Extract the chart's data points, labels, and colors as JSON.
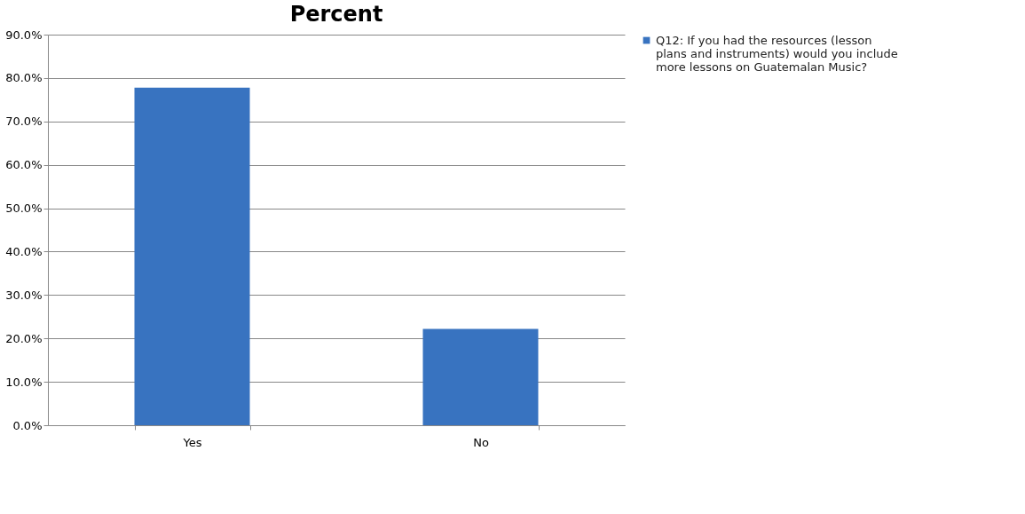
{
  "chart_data": {
    "type": "bar",
    "title": "Percent",
    "categories": [
      "Yes",
      "No"
    ],
    "series": [
      {
        "name": "Q12: If you had the resources (lesson plans and instruments) would you include more lessons on Guatemalan Music?",
        "color": "#3873c0",
        "values": [
          77.8,
          22.2
        ]
      }
    ],
    "ylim": [
      0,
      90
    ],
    "yticks": [
      {
        "value": 0,
        "label": "0.0%"
      },
      {
        "value": 10,
        "label": "10.0%"
      },
      {
        "value": 20,
        "label": "20.0%"
      },
      {
        "value": 30,
        "label": "30.0%"
      },
      {
        "value": 40,
        "label": "40.0%"
      },
      {
        "value": 50,
        "label": "50.0%"
      },
      {
        "value": 60,
        "label": "60.0%"
      },
      {
        "value": 70,
        "label": "70.0%"
      },
      {
        "value": 80,
        "label": "80.0%"
      },
      {
        "value": 90,
        "label": "90.0%"
      }
    ],
    "grid": "y",
    "legend": "right"
  }
}
